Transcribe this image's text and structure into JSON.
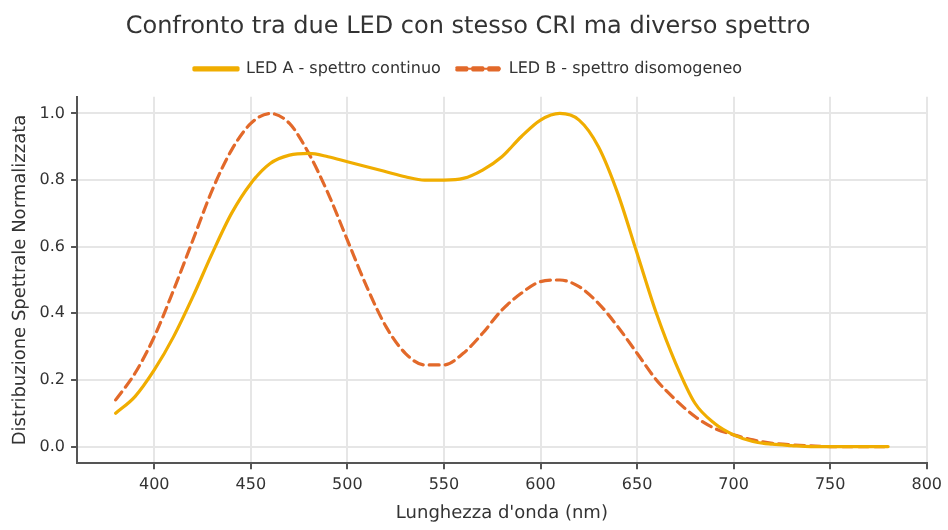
{
  "chart_data": {
    "type": "line",
    "title": "Confronto tra due LED con stesso CRI ma diverso spettro",
    "xlabel": "Lunghezza d'onda (nm)",
    "ylabel": "Distribuzione Spettrale Normalizzata",
    "x": [
      380,
      390,
      400,
      410,
      420,
      430,
      440,
      450,
      460,
      470,
      480,
      490,
      500,
      510,
      520,
      530,
      540,
      550,
      560,
      570,
      580,
      590,
      600,
      610,
      620,
      630,
      640,
      650,
      660,
      670,
      680,
      690,
      700,
      710,
      720,
      730,
      740,
      750,
      760,
      770,
      780
    ],
    "series": [
      {
        "name": "LED A - spettro continuo",
        "color": "#f0ad00",
        "line_style": "solid",
        "values": [
          0.1,
          0.15,
          0.23,
          0.33,
          0.45,
          0.58,
          0.7,
          0.79,
          0.85,
          0.875,
          0.88,
          0.87,
          0.855,
          0.84,
          0.825,
          0.81,
          0.8,
          0.8,
          0.805,
          0.83,
          0.87,
          0.93,
          0.98,
          1.0,
          0.98,
          0.9,
          0.76,
          0.58,
          0.4,
          0.25,
          0.13,
          0.07,
          0.035,
          0.015,
          0.007,
          0.003,
          0,
          0,
          0,
          0,
          0
        ]
      },
      {
        "name": "LED B - spettro disomogeneo",
        "color": "#e2692a",
        "line_style": "dashed",
        "values": [
          0.14,
          0.22,
          0.33,
          0.47,
          0.62,
          0.77,
          0.89,
          0.97,
          1.0,
          0.97,
          0.88,
          0.76,
          0.62,
          0.48,
          0.36,
          0.28,
          0.245,
          0.245,
          0.28,
          0.34,
          0.41,
          0.46,
          0.495,
          0.5,
          0.48,
          0.43,
          0.36,
          0.28,
          0.2,
          0.14,
          0.09,
          0.055,
          0.035,
          0.02,
          0.01,
          0.005,
          0.002,
          0,
          0,
          0,
          0
        ]
      }
    ],
    "xlim": [
      360,
      800
    ],
    "xticks": [
      400,
      450,
      500,
      550,
      600,
      650,
      700,
      750,
      800
    ],
    "ylim": [
      -0.05,
      1.05
    ],
    "yticks": [
      {
        "value": 0,
        "label": "0.0"
      },
      0.2,
      0.4,
      0.6,
      0.8,
      {
        "value": 1,
        "label": "1.0"
      }
    ],
    "grid": true,
    "legend": "top",
    "marker": "none"
  }
}
